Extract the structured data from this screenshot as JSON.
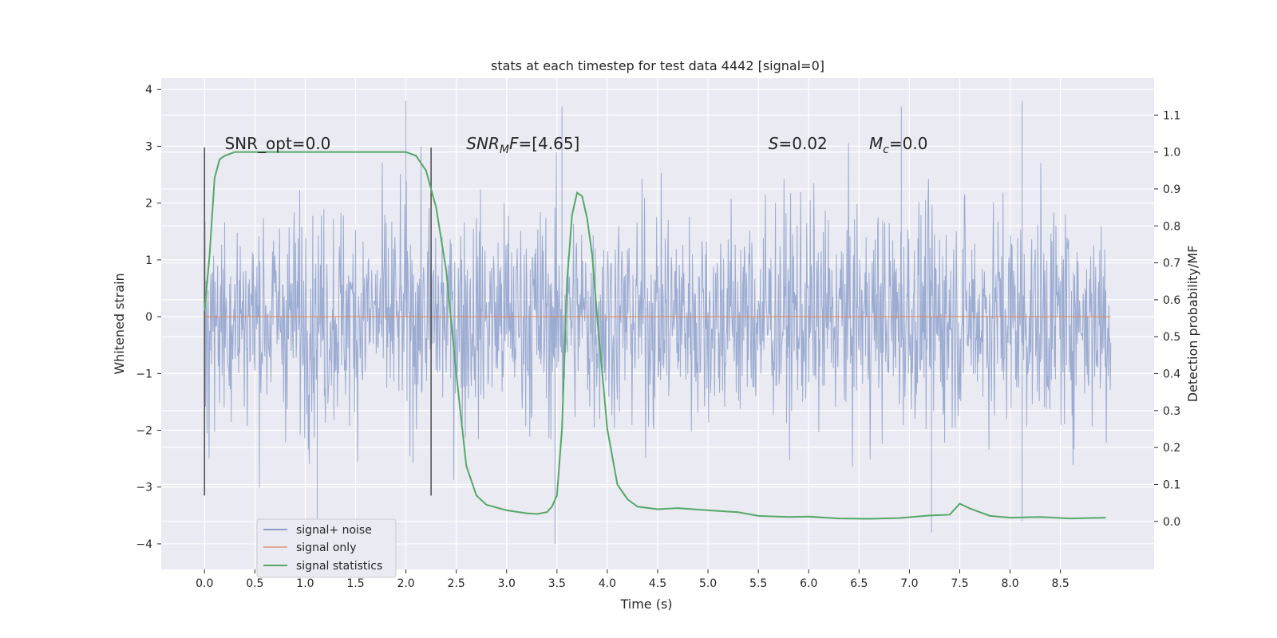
{
  "chart_data": {
    "type": "line",
    "title": "stats at each timestep for test data 4442 [signal=0]",
    "xlabel": "Time (s)",
    "ylabel_left": "Whitened strain",
    "ylabel_right": "Detection probability/MF",
    "xlim": [
      -0.43,
      9.43
    ],
    "ylim_left": [
      -4.45,
      4.2
    ],
    "ylim_right": [
      -0.13,
      1.2
    ],
    "x_ticks": [
      0.0,
      0.5,
      1.0,
      1.5,
      2.0,
      2.5,
      3.0,
      3.5,
      4.0,
      4.5,
      5.0,
      5.5,
      6.0,
      6.5,
      7.0,
      7.5,
      8.0,
      8.5
    ],
    "x_tick_labels": [
      "0.0",
      "0.5",
      "1.0",
      "1.5",
      "2.0",
      "2.5",
      "3.0",
      "3.5",
      "4.0",
      "4.5",
      "5.0",
      "5.5",
      "6.0",
      "6.5",
      "7.0",
      "7.5",
      "8.0",
      "8.5"
    ],
    "y_left_ticks": [
      -4,
      -3,
      -2,
      -1,
      0,
      1,
      2,
      3,
      4
    ],
    "y_left_tick_labels": [
      "−4",
      "−3",
      "−2",
      "−1",
      "0",
      "1",
      "2",
      "3",
      "4"
    ],
    "y_right_ticks": [
      0.0,
      0.1,
      0.2,
      0.3,
      0.4,
      0.5,
      0.6,
      0.7,
      0.8,
      0.9,
      1.0,
      1.1
    ],
    "y_right_tick_labels": [
      "0.0",
      "0.1",
      "0.2",
      "0.3",
      "0.4",
      "0.5",
      "0.6",
      "0.7",
      "0.8",
      "0.9",
      "1.0",
      "1.1"
    ],
    "grid": true,
    "legend_position": "lower-left",
    "series": [
      {
        "name": "signal+ noise",
        "color": "#8da0cb",
        "style": "noise",
        "x_range": [
          0.0,
          9.0
        ],
        "typical_range": [
          -2.0,
          2.0
        ],
        "min": -4.0,
        "max": 3.8,
        "peaks": [
          {
            "x": 2.0,
            "y": 3.8
          },
          {
            "x": 3.48,
            "y": -4.0
          },
          {
            "x": 3.55,
            "y": 3.7
          },
          {
            "x": 6.92,
            "y": 3.7
          },
          {
            "x": 8.12,
            "y": 3.8
          },
          {
            "x": 1.12,
            "y": -3.6
          },
          {
            "x": 7.22,
            "y": -3.8
          },
          {
            "x": 8.12,
            "y": -3.6
          }
        ]
      },
      {
        "name": "signal only",
        "color": "#dd8452",
        "x": [
          0.0,
          9.0
        ],
        "values": [
          0.0,
          0.0
        ]
      },
      {
        "name": "signal statistics",
        "color": "#55a868",
        "axis": "right",
        "x": [
          0.0,
          0.05,
          0.1,
          0.15,
          0.2,
          0.3,
          0.5,
          1.0,
          1.5,
          1.9,
          2.0,
          2.1,
          2.2,
          2.3,
          2.4,
          2.5,
          2.6,
          2.7,
          2.8,
          3.0,
          3.2,
          3.3,
          3.4,
          3.45,
          3.5,
          3.55,
          3.6,
          3.65,
          3.7,
          3.75,
          3.8,
          3.85,
          3.9,
          4.0,
          4.1,
          4.2,
          4.3,
          4.5,
          4.7,
          5.0,
          5.3,
          5.5,
          5.8,
          6.0,
          6.3,
          6.6,
          6.9,
          7.2,
          7.4,
          7.5,
          7.6,
          7.8,
          8.0,
          8.3,
          8.6,
          8.95
        ],
        "values": [
          0.57,
          0.72,
          0.93,
          0.98,
          0.99,
          1.0,
          1.0,
          1.0,
          1.0,
          1.0,
          1.0,
          0.99,
          0.95,
          0.85,
          0.68,
          0.4,
          0.15,
          0.07,
          0.045,
          0.03,
          0.022,
          0.02,
          0.025,
          0.04,
          0.07,
          0.25,
          0.65,
          0.83,
          0.89,
          0.88,
          0.82,
          0.72,
          0.55,
          0.25,
          0.1,
          0.06,
          0.04,
          0.033,
          0.036,
          0.03,
          0.025,
          0.015,
          0.012,
          0.013,
          0.008,
          0.007,
          0.009,
          0.016,
          0.018,
          0.048,
          0.035,
          0.015,
          0.01,
          0.012,
          0.008,
          0.01
        ]
      }
    ],
    "vertical_lines": [
      {
        "x": 0.0,
        "y0": -3.15,
        "y1": 2.98,
        "color": "#555555"
      },
      {
        "x": 2.25,
        "y0": -3.15,
        "y1": 2.98,
        "color": "#555555"
      }
    ],
    "annotations": [
      {
        "x": 0.2,
        "y": 3.05,
        "text": "SNR_opt=0.0",
        "style": "plain"
      },
      {
        "x": 2.6,
        "y": 3.05,
        "pre": "SNR",
        "sub": "M",
        "post": "F",
        "value": "=[4.65]",
        "style": "math"
      },
      {
        "x": 5.6,
        "y": 3.05,
        "pre": "S",
        "value": "=0.02",
        "style": "math"
      },
      {
        "x": 6.6,
        "y": 3.05,
        "pre": "M",
        "sub": "c",
        "value": "=0.0",
        "style": "math"
      }
    ]
  }
}
